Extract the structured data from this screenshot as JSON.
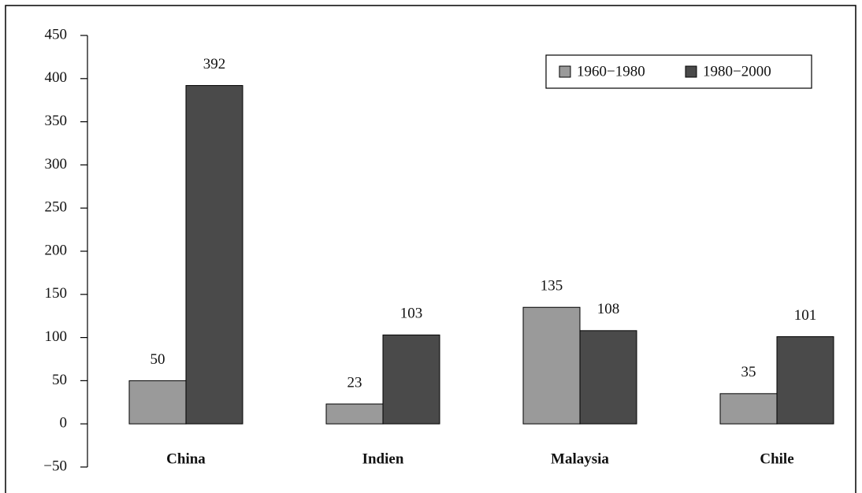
{
  "chart_data": {
    "type": "bar",
    "categories": [
      "China",
      "Indien",
      "Malaysia",
      "Chile"
    ],
    "series": [
      {
        "name": "1960−1980",
        "color": "#9a9a9a",
        "values": [
          50,
          23,
          135,
          35
        ]
      },
      {
        "name": "1980−2000",
        "color": "#4a4a4a",
        "values": [
          392,
          103,
          108,
          101
        ]
      }
    ],
    "ylim": [
      -50,
      450
    ],
    "yticks": [
      {
        "value": -50,
        "label": "−50"
      },
      0,
      50,
      100,
      150,
      200,
      250,
      300,
      350,
      400,
      450
    ],
    "legend": "upper right"
  }
}
